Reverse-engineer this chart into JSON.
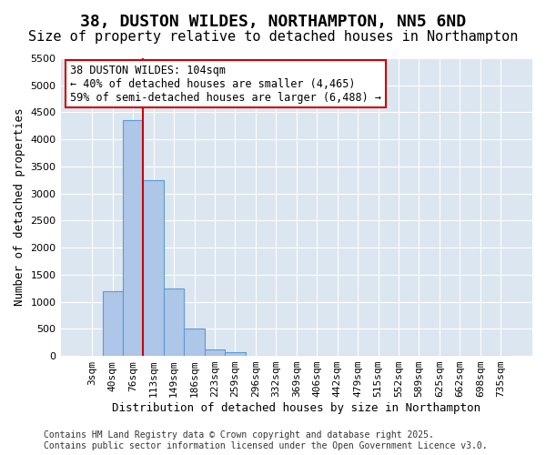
{
  "title": "38, DUSTON WILDES, NORTHAMPTON, NN5 6ND",
  "subtitle": "Size of property relative to detached houses in Northampton",
  "xlabel": "Distribution of detached houses by size in Northampton",
  "ylabel": "Number of detached properties",
  "categories": [
    "3sqm",
    "40sqm",
    "76sqm",
    "113sqm",
    "149sqm",
    "186sqm",
    "223sqm",
    "259sqm",
    "296sqm",
    "332sqm",
    "369sqm",
    "406sqm",
    "442sqm",
    "479sqm",
    "515sqm",
    "552sqm",
    "589sqm",
    "625sqm",
    "662sqm",
    "698sqm",
    "735sqm"
  ],
  "bar_heights": [
    0,
    1200,
    4350,
    3250,
    1250,
    500,
    120,
    70,
    0,
    0,
    0,
    0,
    0,
    0,
    0,
    0,
    0,
    0,
    0,
    0,
    0
  ],
  "bar_color": "#aec6e8",
  "bar_edge_color": "#5b9bd5",
  "bg_color": "#dce6f0",
  "grid_color": "#ffffff",
  "vline_pos": 2.5,
  "vline_color": "#cc0000",
  "ylim": [
    0,
    5500
  ],
  "yticks": [
    0,
    500,
    1000,
    1500,
    2000,
    2500,
    3000,
    3500,
    4000,
    4500,
    5000,
    5500
  ],
  "annotation_text": "38 DUSTON WILDES: 104sqm\n← 40% of detached houses are smaller (4,465)\n59% of semi-detached houses are larger (6,488) →",
  "footer": "Contains HM Land Registry data © Crown copyright and database right 2025.\nContains public sector information licensed under the Open Government Licence v3.0.",
  "title_fontsize": 13,
  "subtitle_fontsize": 11,
  "axis_label_fontsize": 9,
  "tick_fontsize": 8,
  "annotation_fontsize": 8.5,
  "footer_fontsize": 7
}
